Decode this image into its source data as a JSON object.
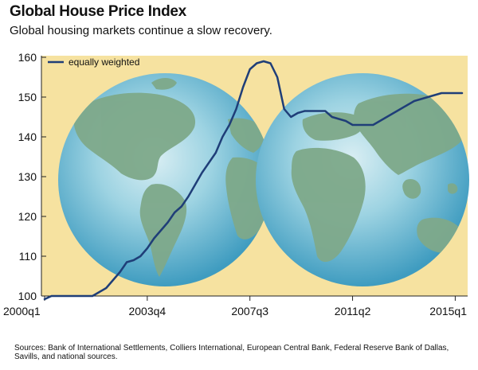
{
  "header": {
    "title": "Global House Price Index",
    "subtitle": "Global housing markets continue a slow recovery."
  },
  "footer": {
    "source": "Sources: Bank of International Settlements, Colliers International, European Central Bank, Federal Reserve Bank of Dallas, Savills, and national sources."
  },
  "colors": {
    "background": "#f6e2a0",
    "ocean": "#7cc4d8",
    "land": "#7ea98a",
    "line": "#1f3e78"
  },
  "icons": [
    "globe-left-illustration",
    "globe-right-illustration"
  ],
  "chart_data": {
    "type": "line",
    "title": "Global House Price Index",
    "subtitle": "Global housing markets continue a slow recovery.",
    "xlabel": "",
    "ylabel": "",
    "ylim": [
      100,
      160
    ],
    "yticks": [
      100,
      110,
      120,
      130,
      140,
      150,
      160
    ],
    "xtick_labels": [
      "2000q1",
      "2003q4",
      "2007q3",
      "2011q2",
      "2015q1"
    ],
    "grid": false,
    "legend": {
      "position": "top-left",
      "entries": [
        "equally weighted"
      ]
    },
    "series": [
      {
        "name": "equally weighted",
        "x": [
          "2000q1",
          "2000q2",
          "2000q3",
          "2000q4",
          "2001q1",
          "2001q2",
          "2001q3",
          "2001q4",
          "2002q1",
          "2002q2",
          "2002q3",
          "2002q4",
          "2003q1",
          "2003q2",
          "2003q3",
          "2003q4",
          "2004q1",
          "2004q2",
          "2004q3",
          "2004q4",
          "2005q1",
          "2005q2",
          "2005q3",
          "2005q4",
          "2006q1",
          "2006q2",
          "2006q3",
          "2006q4",
          "2007q1",
          "2007q2",
          "2007q3",
          "2007q4",
          "2008q1",
          "2008q2",
          "2008q3",
          "2008q4",
          "2009q1",
          "2009q2",
          "2009q3",
          "2009q4",
          "2010q1",
          "2010q2",
          "2010q3",
          "2010q4",
          "2011q1",
          "2011q2",
          "2011q3",
          "2011q4",
          "2012q1",
          "2012q2",
          "2012q3",
          "2012q4",
          "2013q1",
          "2013q2",
          "2013q3",
          "2013q4",
          "2014q1",
          "2014q2",
          "2014q3",
          "2014q4",
          "2015q1",
          "2015q2"
        ],
        "values": [
          99.2,
          100,
          100,
          100,
          100,
          100,
          100,
          100,
          101,
          102,
          104,
          106,
          108.5,
          109,
          110,
          112,
          114.5,
          116.5,
          118.5,
          121,
          122.5,
          125,
          128,
          131,
          133.5,
          136,
          140,
          143,
          147,
          152.5,
          157,
          158.5,
          159,
          158.5,
          155,
          147,
          145,
          146,
          146.5,
          146.5,
          146.5,
          146.5,
          145,
          144.5,
          144,
          143,
          143,
          143,
          143,
          144,
          145,
          146,
          147,
          148,
          149,
          149.5,
          150,
          150.5,
          151,
          151,
          151,
          151
        ]
      }
    ]
  }
}
